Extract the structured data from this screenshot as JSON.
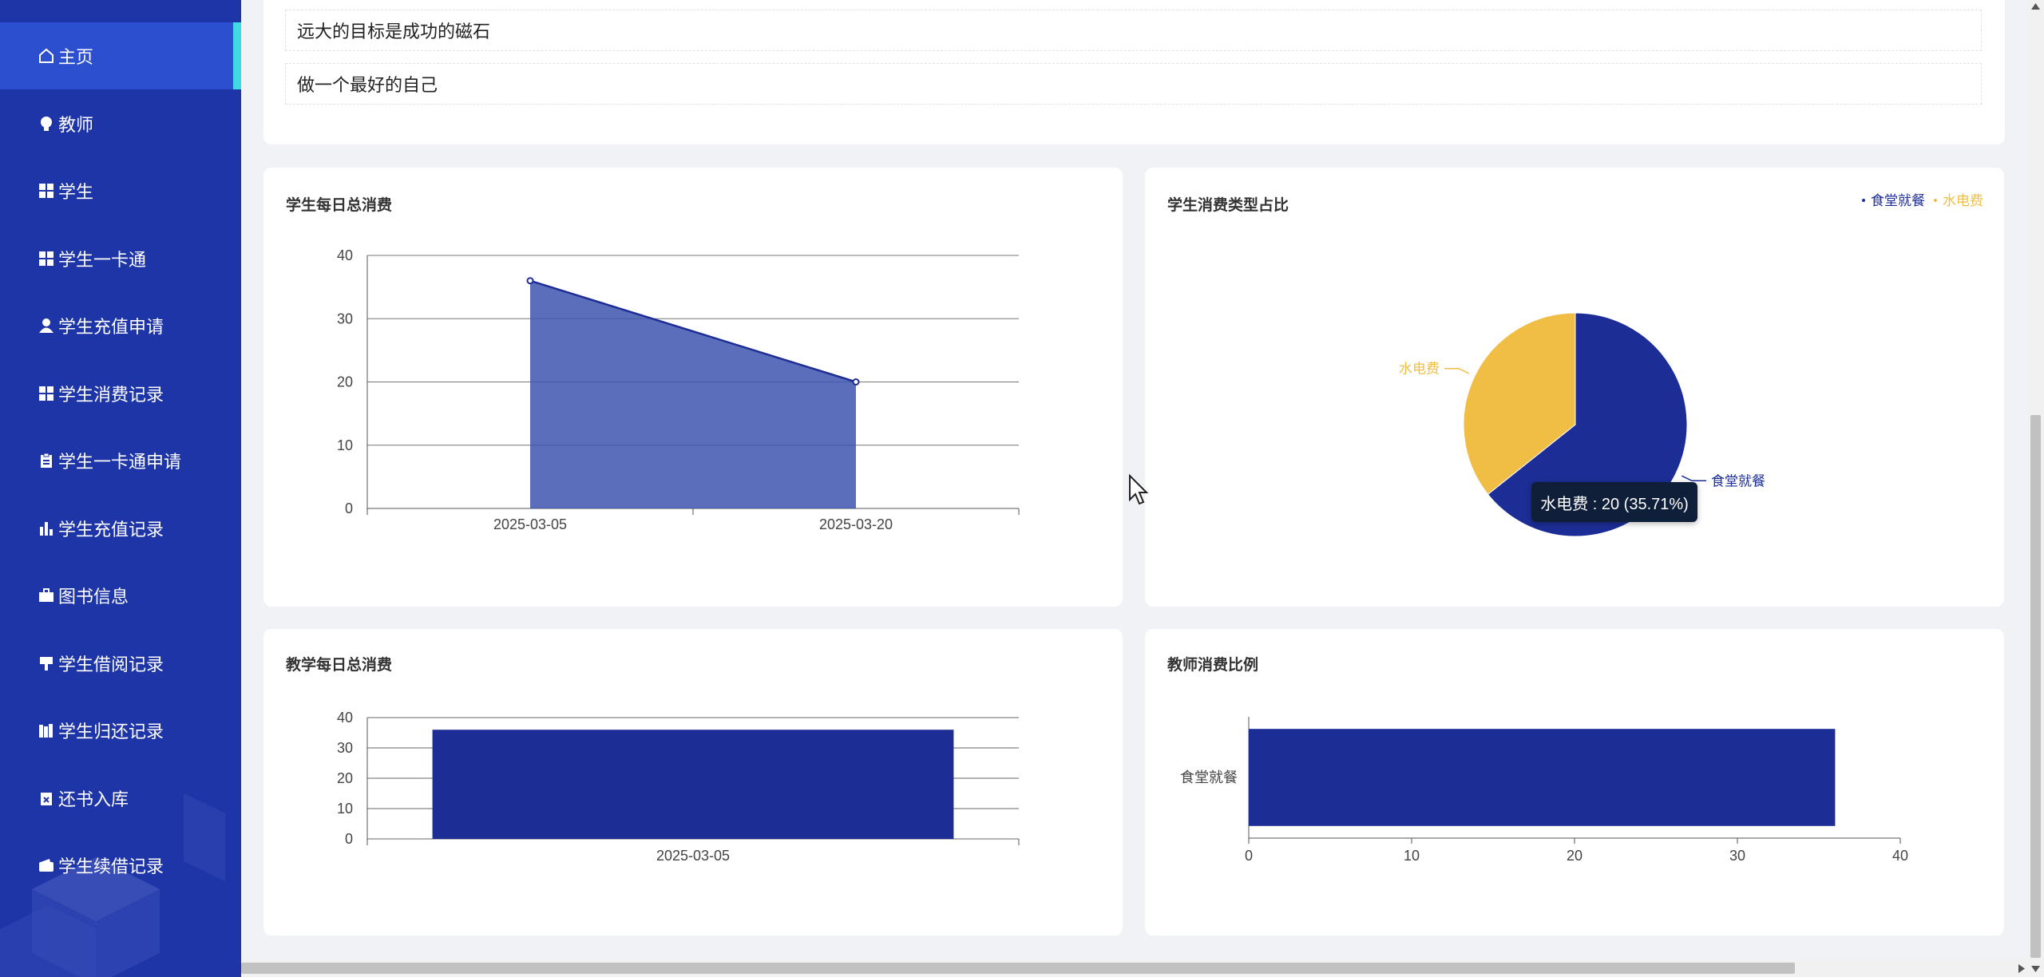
{
  "sidebar": {
    "items": [
      {
        "label": "主页",
        "icon": "home-icon",
        "active": true
      },
      {
        "label": "教师",
        "icon": "bulb-icon"
      },
      {
        "label": "学生",
        "icon": "grid-icon"
      },
      {
        "label": "学生一卡通",
        "icon": "grid-icon"
      },
      {
        "label": "学生充值申请",
        "icon": "user-icon"
      },
      {
        "label": "学生消费记录",
        "icon": "grid-icon"
      },
      {
        "label": "学生一卡通申请",
        "icon": "clipboard-icon"
      },
      {
        "label": "学生充值记录",
        "icon": "bar-chart-icon"
      },
      {
        "label": "图书信息",
        "icon": "briefcase-icon"
      },
      {
        "label": "学生借阅记录",
        "icon": "stamp-icon"
      },
      {
        "label": "学生归还记录",
        "icon": "books-icon"
      },
      {
        "label": "还书入库",
        "icon": "clipboard-x-icon"
      },
      {
        "label": "学生续借记录",
        "icon": "wallet-icon"
      }
    ]
  },
  "mottos": [
    "远大的目标是成功的磁石",
    "做一个最好的自己"
  ],
  "colors": {
    "sidebar": "#1e35a8",
    "active": "#2b4fcf",
    "accent": "#42d8e4",
    "series_blue": "#1c2d96",
    "series_gold": "#f0be45"
  },
  "charts": {
    "student_daily": {
      "title": "学生每日总消费",
      "chart_data": {
        "type": "area",
        "categories": [
          "2025-03-05",
          "2025-03-20"
        ],
        "values": [
          36,
          20
        ],
        "ylim": [
          0,
          40
        ],
        "yticks": [
          "0",
          "10",
          "20",
          "30",
          "40"
        ]
      }
    },
    "student_type": {
      "title": "学生消费类型占比",
      "legend": [
        "食堂就餐",
        "水电费"
      ],
      "chart_data": {
        "type": "pie",
        "labels": [
          "食堂就餐",
          "水电费"
        ],
        "values": [
          36,
          20
        ],
        "colors": [
          "#1c2d96",
          "#f0be45"
        ]
      },
      "tooltip": "水电费 : 20 (35.71%)"
    },
    "teaching_daily": {
      "title": "教学每日总消费",
      "chart_data": {
        "type": "bar",
        "categories": [
          "2025-03-05"
        ],
        "values": [
          36
        ],
        "ylim": [
          0,
          40
        ],
        "yticks": [
          "0",
          "10",
          "20",
          "30",
          "40"
        ]
      }
    },
    "teacher_ratio": {
      "title": "教师消费比例",
      "chart_data": {
        "type": "bar",
        "orientation": "horizontal",
        "categories": [
          "食堂就餐"
        ],
        "values": [
          36
        ],
        "xlim": [
          0,
          40
        ],
        "xticks": [
          "0",
          "10",
          "20",
          "30",
          "40"
        ]
      }
    }
  }
}
